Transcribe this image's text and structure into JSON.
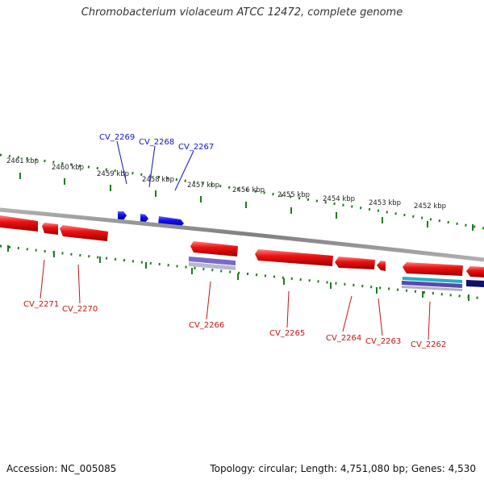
{
  "title": "Chromobacterium violaceum ATCC 12472, complete genome",
  "accession": "Accession: NC_005085",
  "summary": "Topology: circular; Length: 4,751,080 bp; Genes: 4,530",
  "colors": {
    "forward_gene": "#1010ee",
    "reverse_gene": "#ee1111",
    "forward_label": "#1010cc",
    "reverse_label": "#cc1111",
    "backbone": "#8a8a8a",
    "ticks": "#1f7a1f",
    "cds_track": "#7a6ac8",
    "rna_track": "#20b0c8"
  },
  "kbp_labels": [
    "2461 kbp",
    "2460 kbp",
    "2459 kbp",
    "2458 kbp",
    "2457 kbp",
    "2456 kbp",
    "2455 kbp",
    "2454 kbp",
    "2453 kbp",
    "2452 kbp"
  ],
  "forward_genes": [
    "CV_2269",
    "CV_2268",
    "CV_2267"
  ],
  "reverse_genes": [
    "CV_2271",
    "CV_2270",
    "CV_2266",
    "CV_2265",
    "CV_2264",
    "CV_2263",
    "CV_2262"
  ]
}
